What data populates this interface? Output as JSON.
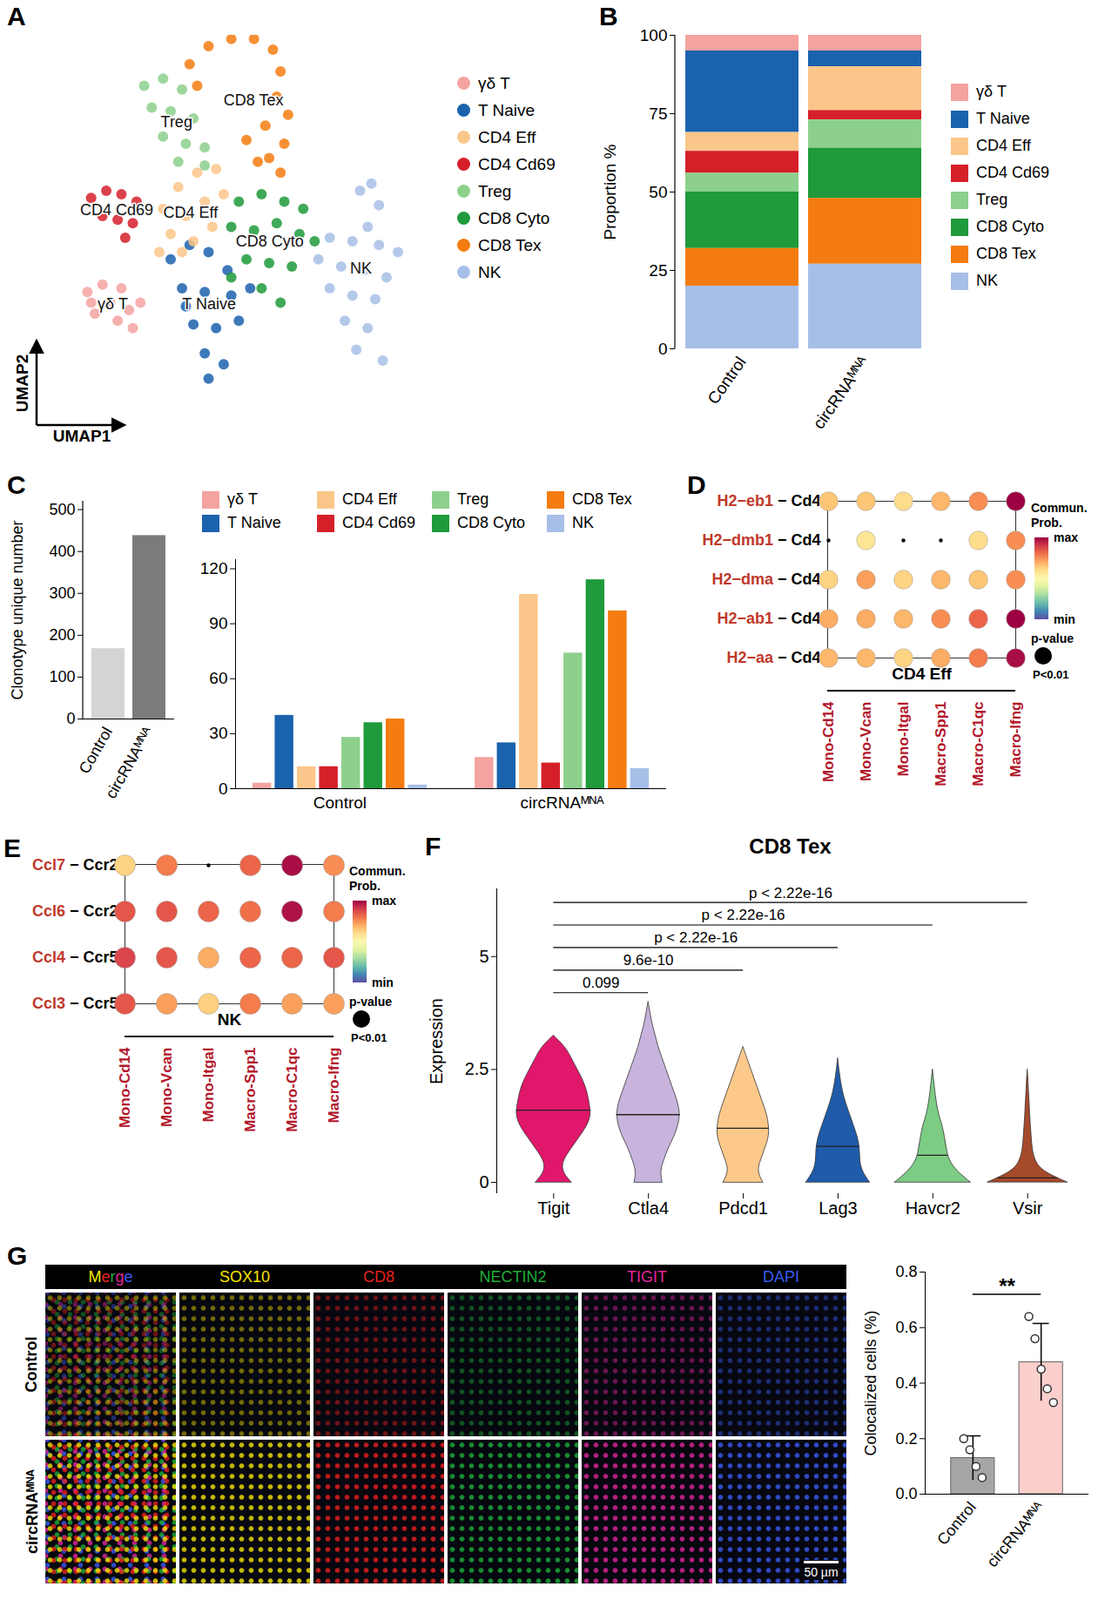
{
  "chart_data": [
    {
      "panel": "A",
      "type": "scatter",
      "x_label": "UMAP1",
      "y_label": "UMAP2",
      "xlim": [
        0,
        10
      ],
      "ylim": [
        0,
        10
      ],
      "tick_labels": false,
      "legend": "right",
      "series": [
        {
          "name": "γδ T",
          "color": "#f4a3a0",
          "x": [
            0.8,
            1.2,
            1.7,
            2.2,
            1.0,
            1.6,
            2.0,
            1.4,
            0.9,
            1.9
          ],
          "y": [
            2.9,
            3.1,
            3.0,
            2.6,
            2.3,
            2.1,
            1.9,
            2.6,
            2.6,
            2.4
          ]
        },
        {
          "name": "T Naive",
          "color": "#1b62ad",
          "x": [
            3.0,
            3.5,
            4.0,
            4.5,
            3.3,
            3.9,
            4.6,
            5.1,
            3.6,
            4.2,
            4.8,
            3.9,
            4.4,
            4.0,
            3.4
          ],
          "y": [
            3.8,
            4.2,
            4.0,
            3.5,
            3.0,
            2.9,
            2.8,
            3.0,
            2.0,
            1.9,
            2.1,
            1.2,
            0.9,
            0.5,
            2.5
          ]
        },
        {
          "name": "CD4 Eff",
          "color": "#fbc68a",
          "x": [
            2.8,
            3.2,
            3.7,
            4.2,
            3.4,
            3.9,
            4.4,
            3.0,
            3.6,
            4.1,
            2.7,
            3.3
          ],
          "y": [
            5.2,
            5.8,
            6.2,
            6.3,
            5.0,
            5.4,
            5.6,
            4.5,
            4.3,
            4.7,
            4.0,
            4.0
          ]
        },
        {
          "name": "CD4 Cd69",
          "color": "#d5202a",
          "x": [
            0.9,
            1.3,
            1.7,
            2.1,
            1.2,
            1.6,
            2.0,
            1.8
          ],
          "y": [
            5.5,
            5.7,
            5.6,
            5.4,
            5.0,
            4.9,
            4.8,
            4.4
          ]
        },
        {
          "name": "Treg",
          "color": "#8dd08c",
          "x": [
            2.3,
            2.8,
            3.3,
            2.5,
            3.0,
            3.6,
            2.8,
            3.4,
            3.9,
            3.2,
            3.9
          ],
          "y": [
            8.6,
            8.8,
            8.5,
            8.0,
            7.9,
            7.7,
            7.2,
            7.0,
            6.9,
            6.5,
            6.4
          ]
        },
        {
          "name": "CD8 Cyto",
          "color": "#1f9a3c",
          "x": [
            4.8,
            5.4,
            6.0,
            6.5,
            4.6,
            5.2,
            5.8,
            6.4,
            6.8,
            5.0,
            5.6,
            6.2,
            5.4,
            5.9,
            4.6
          ],
          "y": [
            5.4,
            5.6,
            5.4,
            5.2,
            4.7,
            4.6,
            4.8,
            4.5,
            4.3,
            3.8,
            3.7,
            3.6,
            3.0,
            2.6,
            3.3
          ]
        },
        {
          "name": "CD8 Tex",
          "color": "#f47c10",
          "x": [
            3.5,
            4.0,
            4.6,
            5.2,
            5.7,
            3.7,
            5.9,
            5.8,
            6.1,
            5.5,
            6.0,
            5.6,
            5.9,
            5.3,
            5.0
          ],
          "y": [
            9.2,
            9.7,
            9.9,
            9.9,
            9.6,
            8.6,
            9.0,
            8.3,
            7.8,
            7.5,
            7.0,
            6.6,
            6.2,
            6.5,
            7.1
          ]
        },
        {
          "name": "NK",
          "color": "#a7bfe6",
          "x": [
            8.0,
            8.3,
            8.5,
            8.2,
            7.2,
            7.8,
            8.5,
            9.0,
            6.9,
            7.5,
            8.1,
            8.7,
            7.2,
            7.8,
            8.4,
            7.6,
            8.2,
            7.9,
            8.6
          ],
          "y": [
            5.7,
            5.9,
            5.3,
            4.7,
            4.4,
            4.3,
            4.2,
            4.0,
            3.8,
            3.6,
            3.5,
            3.3,
            3.0,
            2.8,
            2.7,
            2.1,
            1.9,
            1.3,
            1.0
          ]
        }
      ]
    },
    {
      "panel": "B",
      "type": "bar",
      "stacked": true,
      "y_label": "Proportion %",
      "categories": [
        "Control",
        "circRNAᴹᴺᴬ"
      ],
      "ylim": [
        0,
        100
      ],
      "yticks": [
        0,
        25,
        50,
        75,
        100
      ],
      "legend": "right",
      "series": [
        {
          "name": "γδ T",
          "color": "#f4a3a0",
          "values": [
            5,
            5
          ]
        },
        {
          "name": "T Naive",
          "color": "#1b62ad",
          "values": [
            26,
            5
          ]
        },
        {
          "name": "CD4 Eff",
          "color": "#fbc68a",
          "values": [
            6,
            14
          ]
        },
        {
          "name": "CD4 Cd69",
          "color": "#d5202a",
          "values": [
            7,
            3
          ]
        },
        {
          "name": "Treg",
          "color": "#8dd08c",
          "values": [
            6,
            9
          ]
        },
        {
          "name": "CD8 Cyto",
          "color": "#1f9a3c",
          "values": [
            18,
            16
          ]
        },
        {
          "name": "CD8 Tex",
          "color": "#f47c10",
          "values": [
            12,
            21
          ]
        },
        {
          "name": "NK",
          "color": "#a7bfe6",
          "values": [
            20,
            27
          ]
        }
      ]
    },
    {
      "panel": "C",
      "type": "bar",
      "y_label": "Clonotype unique number",
      "categories": [
        "Control",
        "circRNAᴹᴺᴬ"
      ],
      "values": [
        168,
        438
      ],
      "colors": [
        "#d4d4d4",
        "#7b7b7b"
      ],
      "ylim": [
        0,
        520
      ],
      "yticks": [
        0,
        100,
        200,
        300,
        400,
        500
      ]
    },
    {
      "type": "bar",
      "categories": [
        "Control",
        "circRNAᴹᴺᴬ"
      ],
      "ylim": [
        0,
        125
      ],
      "yticks": [
        0,
        30,
        60,
        90,
        120
      ],
      "legend": "top",
      "series": [
        {
          "name": "γδ T",
          "color": "#f4a3a0",
          "values": [
            3,
            17
          ]
        },
        {
          "name": "T Naive",
          "color": "#1b62ad",
          "values": [
            40,
            25
          ]
        },
        {
          "name": "CD4 Eff",
          "color": "#fbc68a",
          "values": [
            12,
            106
          ]
        },
        {
          "name": "CD4 Cd69",
          "color": "#d5202a",
          "values": [
            12,
            14
          ]
        },
        {
          "name": "Treg",
          "color": "#8dd08c",
          "values": [
            28,
            74
          ]
        },
        {
          "name": "CD8 Cyto",
          "color": "#1f9a3c",
          "values": [
            36,
            114
          ]
        },
        {
          "name": "CD8 Tex",
          "color": "#f47c10",
          "values": [
            38,
            97
          ]
        },
        {
          "name": "NK",
          "color": "#a7bfe6",
          "values": [
            2,
            11
          ]
        }
      ]
    },
    {
      "panel": "D",
      "type": "bubble",
      "rows": [
        [
          "H2−eb1",
          "Cd4"
        ],
        [
          "H2−dmb1",
          "Cd4"
        ],
        [
          "H2−dma",
          "Cd4"
        ],
        [
          "H2−ab1",
          "Cd4"
        ],
        [
          "H2−aa",
          "Cd4"
        ]
      ],
      "separator": " − ",
      "columns": [
        "Mono-Cd14",
        "Mono-Vcan",
        "Mono-Itgal",
        "Macro-Spp1",
        "Macro-C1qc",
        "Macro-Ifng"
      ],
      "group": "CD4 Eff",
      "values": [
        [
          0.65,
          0.65,
          0.6,
          0.68,
          0.75,
          1.0
        ],
        [
          null,
          0.58,
          null,
          null,
          0.6,
          0.75
        ],
        [
          0.62,
          0.72,
          0.62,
          0.68,
          0.65,
          0.75
        ],
        [
          0.7,
          0.7,
          0.68,
          0.75,
          0.82,
          1.0
        ],
        [
          0.68,
          0.68,
          0.62,
          0.7,
          0.78,
          0.98
        ]
      ],
      "color_label": "Commun. Prob.",
      "color_range": [
        0,
        1
      ],
      "color_ticks": [
        {
          "value": 1,
          "label": "max"
        },
        {
          "value": 0,
          "label": "min"
        }
      ],
      "pvalue_label": "p-value",
      "pvalue_entry": "P<0.01"
    },
    {
      "panel": "E",
      "type": "bubble",
      "rows": [
        [
          "Ccl7",
          "Ccr2"
        ],
        [
          "Ccl6",
          "Ccr2"
        ],
        [
          "Ccl4",
          "Ccr5"
        ],
        [
          "Ccl3",
          "Ccr5"
        ]
      ],
      "separator": " − ",
      "columns": [
        "Mono-Cd14",
        "Mono-Vcan",
        "Mono-Itgal",
        "Macro-Spp1",
        "Macro-C1qc",
        "Macro-Ifng"
      ],
      "group": "NK",
      "values": [
        [
          0.62,
          0.78,
          null,
          0.82,
          0.98,
          0.75
        ],
        [
          0.85,
          0.85,
          0.82,
          0.8,
          0.97,
          0.78
        ],
        [
          0.88,
          0.85,
          0.7,
          0.82,
          0.82,
          0.85
        ],
        [
          0.85,
          0.72,
          0.63,
          0.78,
          0.72,
          0.72
        ]
      ],
      "color_label": "Commun. Prob.",
      "color_range": [
        0,
        1
      ],
      "color_ticks": [
        {
          "value": 1,
          "label": "max"
        },
        {
          "value": 0,
          "label": "min"
        }
      ],
      "pvalue_label": "p-value",
      "pvalue_entry": "P<0.01"
    },
    {
      "panel": "F",
      "type": "violin",
      "title": "CD8 Tex",
      "y_label": "Expression",
      "categories": [
        "Tigit",
        "Ctla4",
        "Pdcd1",
        "Lag3",
        "Havcr2",
        "Vsir"
      ],
      "colors": [
        "#e0176b",
        "#c7b3dc",
        "#fdc98a",
        "#1f5ba8",
        "#7ccc84",
        "#a64a2c"
      ],
      "ylim": [
        -0.25,
        6.5
      ],
      "yticks": [
        0,
        2.5,
        5
      ],
      "violins": [
        {
          "y": [
            0,
            0.25,
            0.5,
            0.75,
            1,
            1.25,
            1.5,
            1.75,
            2,
            2.25,
            2.5,
            2.75,
            3,
            3.25
          ],
          "widths": [
            0.45,
            0.2,
            0.25,
            0.45,
            0.65,
            0.85,
            0.95,
            0.9,
            0.85,
            0.75,
            0.6,
            0.45,
            0.3,
            0
          ],
          "median": 1.6
        },
        {
          "y": [
            0,
            0.25,
            0.5,
            0.75,
            1,
            1.25,
            1.5,
            1.75,
            2,
            2.25,
            2.5,
            2.75,
            3,
            3.25,
            3.5,
            3.75,
            4
          ],
          "widths": [
            0.35,
            0.3,
            0.4,
            0.5,
            0.65,
            0.75,
            0.8,
            0.75,
            0.65,
            0.55,
            0.45,
            0.35,
            0.25,
            0.18,
            0.1,
            0.05,
            0
          ],
          "median": 1.5
        },
        {
          "y": [
            0,
            0.25,
            0.5,
            0.75,
            1,
            1.25,
            1.5,
            1.75,
            2,
            2.25,
            2.5,
            2.75,
            3
          ],
          "widths": [
            0.5,
            0.35,
            0.45,
            0.55,
            0.65,
            0.65,
            0.6,
            0.5,
            0.4,
            0.3,
            0.2,
            0.1,
            0
          ],
          "median": 1.2
        },
        {
          "y": [
            0,
            0.25,
            0.5,
            0.75,
            1,
            1.25,
            1.5,
            1.75,
            2,
            2.25,
            2.5,
            2.75
          ],
          "widths": [
            0.8,
            0.6,
            0.55,
            0.55,
            0.5,
            0.4,
            0.3,
            0.2,
            0.12,
            0.07,
            0.03,
            0
          ],
          "median": 0.8
        },
        {
          "y": [
            0,
            0.25,
            0.5,
            0.75,
            1,
            1.25,
            1.5,
            1.75,
            2,
            2.25,
            2.5
          ],
          "widths": [
            0.95,
            0.6,
            0.4,
            0.35,
            0.3,
            0.25,
            0.15,
            0.1,
            0.06,
            0.03,
            0
          ],
          "median": 0.6
        },
        {
          "y": [
            0,
            0.25,
            0.5,
            0.75,
            1,
            1.25,
            1.5,
            1.75,
            2,
            2.25,
            2.5
          ],
          "widths": [
            1.0,
            0.35,
            0.18,
            0.12,
            0.1,
            0.08,
            0.06,
            0.05,
            0.03,
            0.02,
            0
          ],
          "median": 0.1
        }
      ],
      "comparisons": [
        {
          "from": "Tigit",
          "to": "Ctla4",
          "label": "0.099",
          "y": 4.2
        },
        {
          "from": "Tigit",
          "to": "Pdcd1",
          "label": "9.6e-10",
          "y": 4.7
        },
        {
          "from": "Tigit",
          "to": "Lag3",
          "label": "p < 2.22e-16",
          "y": 5.2
        },
        {
          "from": "Tigit",
          "to": "Havcr2",
          "label": "p < 2.22e-16",
          "y": 5.7
        },
        {
          "from": "Tigit",
          "to": "Vsir",
          "label": "p < 2.22e-16",
          "y": 6.2
        }
      ]
    },
    {
      "panel": "G",
      "type": "image_grid",
      "columns": [
        {
          "name": "Merge"
        },
        {
          "name": "SOX10",
          "color": "#f5e400"
        },
        {
          "name": "CD8",
          "color": "#e8201e"
        },
        {
          "name": "NECTIN2",
          "color": "#1fae3a"
        },
        {
          "name": "TIGIT",
          "color": "#e0259b"
        },
        {
          "name": "DAPI",
          "color": "#3a5bf0"
        }
      ],
      "rows": [
        "Control",
        "circRNAᴹᴺᴬ"
      ],
      "scale_bar": "50 µm"
    },
    {
      "type": "bar",
      "y_label": "Colocalized cells (%)",
      "categories": [
        "Control",
        "circRNAᴹᴺᴬ"
      ],
      "values": [
        0.13,
        0.475
      ],
      "errors": [
        0.08,
        0.14
      ],
      "points": [
        [
          0.2,
          0.16,
          0.1,
          0.06
        ],
        [
          0.64,
          0.56,
          0.45,
          0.38,
          0.33
        ]
      ],
      "colors": [
        "#a6a6a6",
        "#fbcfcc"
      ],
      "ylim": [
        0,
        0.8
      ],
      "yticks": [
        {
          "value": 0,
          "label": "0.0"
        },
        0.2,
        0.4,
        0.6,
        0.8
      ],
      "annotations": [
        {
          "text": "**",
          "from": "Control",
          "to": "circRNAᴹᴺᴬ",
          "y": 0.72
        }
      ]
    }
  ]
}
